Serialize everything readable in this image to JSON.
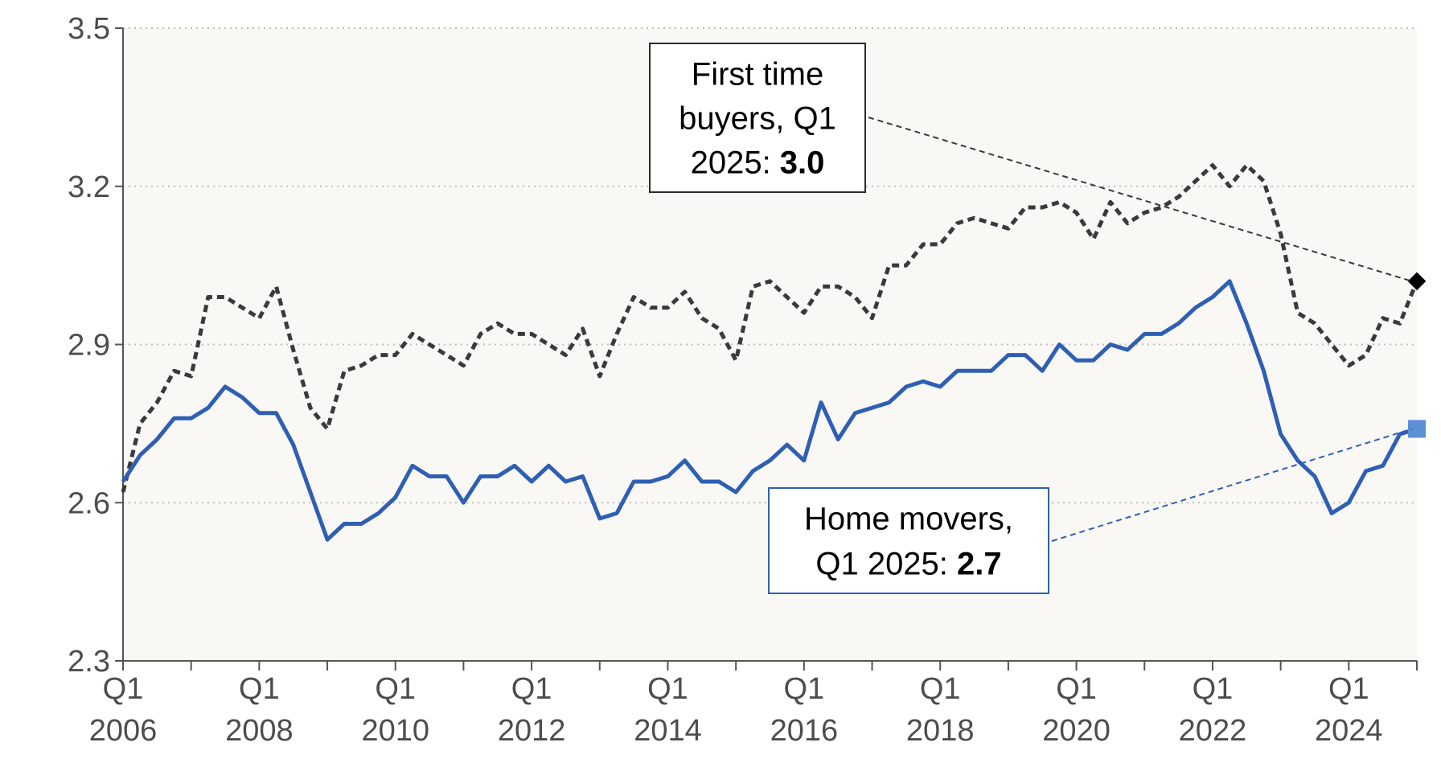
{
  "chart_data": {
    "type": "line",
    "title": "",
    "xlabel": "",
    "ylabel": "",
    "ylim": [
      2.3,
      3.5
    ],
    "yticks": [
      "2.3",
      "2.6",
      "2.9",
      "3.2",
      "3.5"
    ],
    "xlim": [
      2006.0,
      2025.0
    ],
    "x_tick_labels": [
      {
        "x": 2006,
        "line1": "Q1",
        "line2": "2006"
      },
      {
        "x": 2008,
        "line1": "Q1",
        "line2": "2008"
      },
      {
        "x": 2010,
        "line1": "Q1",
        "line2": "2010"
      },
      {
        "x": 2012,
        "line1": "Q1",
        "line2": "2012"
      },
      {
        "x": 2014,
        "line1": "Q1",
        "line2": "2014"
      },
      {
        "x": 2016,
        "line1": "Q1",
        "line2": "2016"
      },
      {
        "x": 2018,
        "line1": "Q1",
        "line2": "2018"
      },
      {
        "x": 2020,
        "line1": "Q1",
        "line2": "2020"
      },
      {
        "x": 2022,
        "line1": "Q1",
        "line2": "2022"
      },
      {
        "x": 2024,
        "line1": "Q1",
        "line2": "2024"
      }
    ],
    "grid": true,
    "background_color": "#f9f8f5",
    "series": [
      {
        "key": "first_time_buyers",
        "style": "dotted",
        "color": "#3a3a3a",
        "marker_color": "#000000",
        "x": [
          2006.0,
          2006.25,
          2006.5,
          2006.75,
          2007.0,
          2007.25,
          2007.5,
          2007.75,
          2008.0,
          2008.25,
          2008.5,
          2008.75,
          2009.0,
          2009.25,
          2009.5,
          2009.75,
          2010.0,
          2010.25,
          2010.5,
          2010.75,
          2011.0,
          2011.25,
          2011.5,
          2011.75,
          2012.0,
          2012.25,
          2012.5,
          2012.75,
          2013.0,
          2013.25,
          2013.5,
          2013.75,
          2014.0,
          2014.25,
          2014.5,
          2014.75,
          2015.0,
          2015.25,
          2015.5,
          2015.75,
          2016.0,
          2016.25,
          2016.5,
          2016.75,
          2017.0,
          2017.25,
          2017.5,
          2017.75,
          2018.0,
          2018.25,
          2018.5,
          2018.75,
          2019.0,
          2019.25,
          2019.5,
          2019.75,
          2020.0,
          2020.25,
          2020.5,
          2020.75,
          2021.0,
          2021.25,
          2021.5,
          2021.75,
          2022.0,
          2022.25,
          2022.5,
          2022.75,
          2023.0,
          2023.25,
          2023.5,
          2023.75,
          2024.0,
          2024.25,
          2024.5,
          2024.75,
          2025.0
        ],
        "values": [
          2.62,
          2.75,
          2.79,
          2.85,
          2.84,
          2.99,
          2.99,
          2.97,
          2.95,
          3.01,
          2.89,
          2.78,
          2.74,
          2.85,
          2.86,
          2.88,
          2.88,
          2.92,
          2.9,
          2.88,
          2.86,
          2.92,
          2.94,
          2.92,
          2.92,
          2.9,
          2.88,
          2.93,
          2.84,
          2.92,
          2.99,
          2.97,
          2.97,
          3.0,
          2.95,
          2.93,
          2.87,
          3.01,
          3.02,
          2.99,
          2.96,
          3.01,
          3.01,
          2.99,
          2.95,
          3.05,
          3.05,
          3.09,
          3.09,
          3.13,
          3.14,
          3.13,
          3.12,
          3.16,
          3.16,
          3.17,
          3.15,
          3.1,
          3.17,
          3.13,
          3.15,
          3.16,
          3.18,
          3.21,
          3.24,
          3.2,
          3.24,
          3.21,
          3.11,
          2.96,
          2.94,
          2.9,
          2.86,
          2.88,
          2.95,
          2.94,
          3.02
        ]
      },
      {
        "key": "home_movers",
        "style": "solid",
        "color": "#2e5fb3",
        "marker_color": "#5b8fd6",
        "x": [
          2006.0,
          2006.25,
          2006.5,
          2006.75,
          2007.0,
          2007.25,
          2007.5,
          2007.75,
          2008.0,
          2008.25,
          2008.5,
          2008.75,
          2009.0,
          2009.25,
          2009.5,
          2009.75,
          2010.0,
          2010.25,
          2010.5,
          2010.75,
          2011.0,
          2011.25,
          2011.5,
          2011.75,
          2012.0,
          2012.25,
          2012.5,
          2012.75,
          2013.0,
          2013.25,
          2013.5,
          2013.75,
          2014.0,
          2014.25,
          2014.5,
          2014.75,
          2015.0,
          2015.25,
          2015.5,
          2015.75,
          2016.0,
          2016.25,
          2016.5,
          2016.75,
          2017.0,
          2017.25,
          2017.5,
          2017.75,
          2018.0,
          2018.25,
          2018.5,
          2018.75,
          2019.0,
          2019.25,
          2019.5,
          2019.75,
          2020.0,
          2020.25,
          2020.5,
          2020.75,
          2021.0,
          2021.25,
          2021.5,
          2021.75,
          2022.0,
          2022.25,
          2022.5,
          2022.75,
          2023.0,
          2023.25,
          2023.5,
          2023.75,
          2024.0,
          2024.25,
          2024.5,
          2024.75,
          2025.0
        ],
        "values": [
          2.64,
          2.69,
          2.72,
          2.76,
          2.76,
          2.78,
          2.82,
          2.8,
          2.77,
          2.77,
          2.71,
          2.62,
          2.53,
          2.56,
          2.56,
          2.58,
          2.61,
          2.67,
          2.65,
          2.65,
          2.6,
          2.65,
          2.65,
          2.67,
          2.64,
          2.67,
          2.64,
          2.65,
          2.57,
          2.58,
          2.64,
          2.64,
          2.65,
          2.68,
          2.64,
          2.64,
          2.62,
          2.66,
          2.68,
          2.71,
          2.68,
          2.79,
          2.72,
          2.77,
          2.78,
          2.79,
          2.82,
          2.83,
          2.82,
          2.85,
          2.85,
          2.85,
          2.88,
          2.88,
          2.85,
          2.9,
          2.87,
          2.87,
          2.9,
          2.89,
          2.92,
          2.92,
          2.94,
          2.97,
          2.99,
          3.02,
          2.94,
          2.85,
          2.73,
          2.68,
          2.65,
          2.58,
          2.6,
          2.66,
          2.67,
          2.73,
          2.74
        ]
      }
    ],
    "annotations": [
      {
        "key": "ftb",
        "lines": [
          "First time",
          "buyers, Q1"
        ],
        "last_prefix": "2025: ",
        "last_bold": "3.0",
        "border_color": "#2b2b2b",
        "leader_color": "#3a3a3a"
      },
      {
        "key": "hm",
        "lines": [
          "Home movers,"
        ],
        "last_prefix": "Q1 2025: ",
        "last_bold": "2.7",
        "border_color": "#2e5fb3",
        "leader_color": "#2e5fb3"
      }
    ]
  }
}
